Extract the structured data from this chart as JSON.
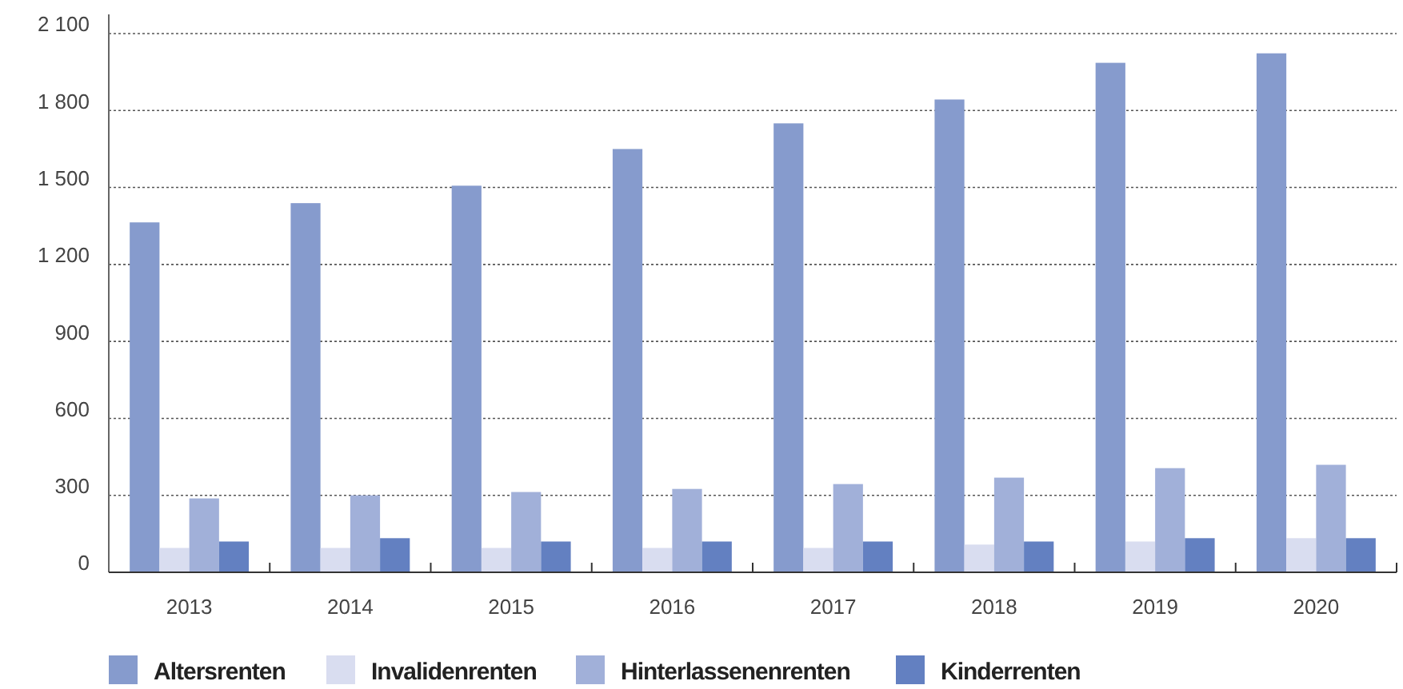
{
  "chart_data": {
    "type": "bar",
    "categories": [
      "2013",
      "2014",
      "2015",
      "2016",
      "2017",
      "2018",
      "2019",
      "2020"
    ],
    "series": [
      {
        "name": "Altersrenten",
        "color": "#869bcd",
        "values": [
          1364,
          1439,
          1507,
          1650,
          1750,
          1843,
          1986,
          2023
        ]
      },
      {
        "name": "Invalidenrenten",
        "color": "#d9ddf0",
        "values": [
          95,
          95,
          95,
          95,
          95,
          108,
          120,
          133
        ]
      },
      {
        "name": "Hinterlassenenrenten",
        "color": "#a1b0d9",
        "values": [
          288,
          300,
          313,
          325,
          344,
          369,
          406,
          419
        ]
      },
      {
        "name": "Kinderrenten",
        "color": "#6380c1",
        "values": [
          120,
          133,
          120,
          120,
          120,
          120,
          133,
          133
        ]
      }
    ],
    "ylim": [
      0,
      2100
    ],
    "yticks": [
      0,
      300,
      600,
      900,
      {
        "value": 1200,
        "label": "1 200"
      },
      {
        "value": 1500,
        "label": "1 500"
      },
      {
        "value": 1800,
        "label": "1 800"
      },
      {
        "value": 2100,
        "label": "2 100"
      }
    ],
    "grid": "y",
    "legend": "bottom"
  }
}
